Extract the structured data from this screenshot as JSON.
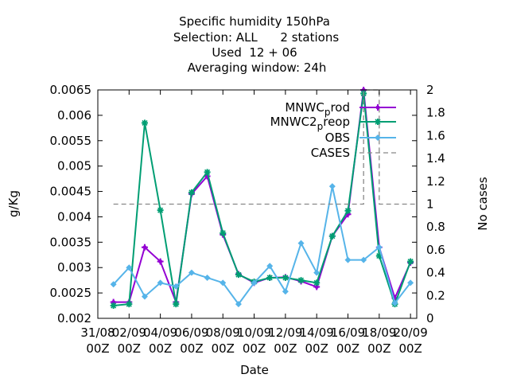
{
  "chart_data": {
    "type": "line",
    "title_lines": [
      "Specific humidity 150hPa",
      "Selection: ALL      2 stations",
      "Used  12 + 06",
      "Averaging window: 24h"
    ],
    "xlabel": "Date",
    "ylabel": "g/Kg",
    "y2label": "No cases",
    "ylim": [
      0.002,
      0.0065
    ],
    "y2lim": [
      0,
      2
    ],
    "yticks": [
      "0.002",
      "0.0025",
      "0.003",
      "0.0035",
      "0.004",
      "0.0045",
      "0.005",
      "0.0055",
      "0.006",
      "0.0065"
    ],
    "y2ticks": [
      "0",
      "0.2",
      "0.4",
      "0.6",
      "0.8",
      "1",
      "1.2",
      "1.4",
      "1.6",
      "1.8",
      "2"
    ],
    "xticks": [
      {
        "day": 0,
        "line1": "31/08",
        "line2": "00Z"
      },
      {
        "day": 2,
        "line1": "02/09",
        "line2": "00Z"
      },
      {
        "day": 4,
        "line1": "04/09",
        "line2": "00Z"
      },
      {
        "day": 6,
        "line1": "06/09",
        "line2": "00Z"
      },
      {
        "day": 8,
        "line1": "08/09",
        "line2": "00Z"
      },
      {
        "day": 10,
        "line1": "10/09",
        "line2": "00Z"
      },
      {
        "day": 12,
        "line1": "12/09",
        "line2": "00Z"
      },
      {
        "day": 14,
        "line1": "14/09",
        "line2": "00Z"
      },
      {
        "day": 16,
        "line1": "16/09",
        "line2": "00Z"
      },
      {
        "day": 18,
        "line1": "18/09",
        "line2": "00Z"
      },
      {
        "day": 20,
        "line1": "20/09",
        "line2": "00Z"
      }
    ],
    "xrange_days": [
      0,
      20.4
    ],
    "series": [
      {
        "name": "MNWC_prod",
        "legend_main": "MNWC",
        "legend_sub": "p",
        "legend_tail": "rod",
        "color": "#9400d3",
        "marker": "plus",
        "points": [
          [
            1,
            0.00232
          ],
          [
            2,
            0.00232
          ],
          [
            3,
            0.0034
          ],
          [
            4,
            0.00312
          ],
          [
            5,
            0.00232
          ],
          [
            6,
            0.00445
          ],
          [
            7,
            0.0048
          ],
          [
            8,
            0.00365
          ],
          [
            9,
            0.00287
          ],
          [
            10,
            0.0027
          ],
          [
            11,
            0.0028
          ],
          [
            12,
            0.00281
          ],
          [
            13,
            0.00273
          ],
          [
            14,
            0.00262
          ],
          [
            15,
            0.00362
          ],
          [
            16,
            0.00405
          ],
          [
            17,
            0.0065
          ],
          [
            18,
            0.0034
          ],
          [
            19,
            0.0024
          ],
          [
            20,
            0.0031
          ]
        ]
      },
      {
        "name": "MNWC2_preop",
        "legend_main": "MNWC2",
        "legend_sub": "p",
        "legend_tail": "reop",
        "color": "#009e73",
        "marker": "cross",
        "points": [
          [
            1,
            0.00225
          ],
          [
            2,
            0.00228
          ],
          [
            3,
            0.00585
          ],
          [
            4,
            0.00413
          ],
          [
            5,
            0.00228
          ],
          [
            6,
            0.00448
          ],
          [
            7,
            0.00488
          ],
          [
            8,
            0.00368
          ],
          [
            9,
            0.00286
          ],
          [
            10,
            0.00272
          ],
          [
            11,
            0.0028
          ],
          [
            12,
            0.0028
          ],
          [
            13,
            0.00275
          ],
          [
            14,
            0.0027
          ],
          [
            15,
            0.00362
          ],
          [
            16,
            0.00412
          ],
          [
            17,
            0.00643
          ],
          [
            18,
            0.00323
          ],
          [
            19,
            0.00228
          ],
          [
            20,
            0.00312
          ]
        ]
      },
      {
        "name": "OBS",
        "color": "#56b4e9",
        "marker": "diamond",
        "points": [
          [
            1,
            0.00267
          ],
          [
            2,
            0.003
          ],
          [
            3,
            0.00243
          ],
          [
            4,
            0.0027
          ],
          [
            5,
            0.00263
          ],
          [
            6,
            0.0029
          ],
          [
            7,
            0.0028
          ],
          [
            8,
            0.0027
          ],
          [
            9,
            0.00228
          ],
          [
            10,
            0.0027
          ],
          [
            11,
            0.00303
          ],
          [
            12,
            0.00253
          ],
          [
            13,
            0.00348
          ],
          [
            14,
            0.0029
          ],
          [
            15,
            0.0046
          ],
          [
            16,
            0.00315
          ],
          [
            17,
            0.00315
          ],
          [
            18,
            0.0034
          ],
          [
            19,
            0.0023
          ],
          [
            20,
            0.0027
          ]
        ]
      },
      {
        "name": "CASES",
        "color": "#888888",
        "dashed": true,
        "axis": "y2",
        "steps": [
          [
            1,
            1
          ],
          [
            17,
            1
          ],
          [
            17,
            2
          ],
          [
            18,
            2
          ],
          [
            18,
            1
          ],
          [
            20.4,
            1
          ]
        ]
      }
    ]
  }
}
